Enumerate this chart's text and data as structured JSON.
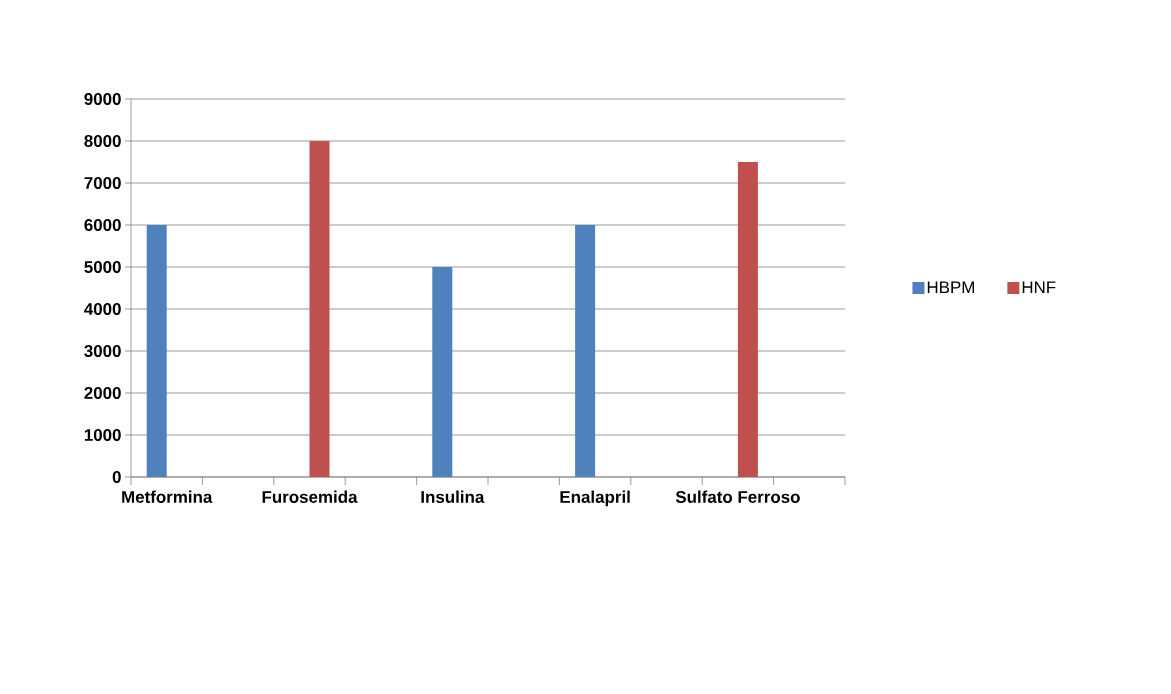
{
  "chart_data": {
    "type": "bar",
    "categories": [
      "Metformina",
      null,
      "Furosemida",
      null,
      "Insulina",
      null,
      "Enalapril",
      null,
      "Sulfato Ferroso",
      null
    ],
    "series": [
      {
        "name": "HBPM",
        "color": "#4f81bd",
        "values": [
          6000,
          null,
          null,
          null,
          5000,
          null,
          6000,
          null,
          null,
          null
        ]
      },
      {
        "name": "HNF",
        "color": "#c0504d",
        "values": [
          null,
          null,
          8000,
          null,
          null,
          null,
          null,
          null,
          7500,
          null
        ]
      }
    ],
    "ylim": [
      0,
      9000
    ],
    "yticks": [
      0,
      1000,
      2000,
      3000,
      4000,
      5000,
      6000,
      7000,
      8000,
      9000
    ],
    "grid": "y",
    "legend": "right"
  }
}
